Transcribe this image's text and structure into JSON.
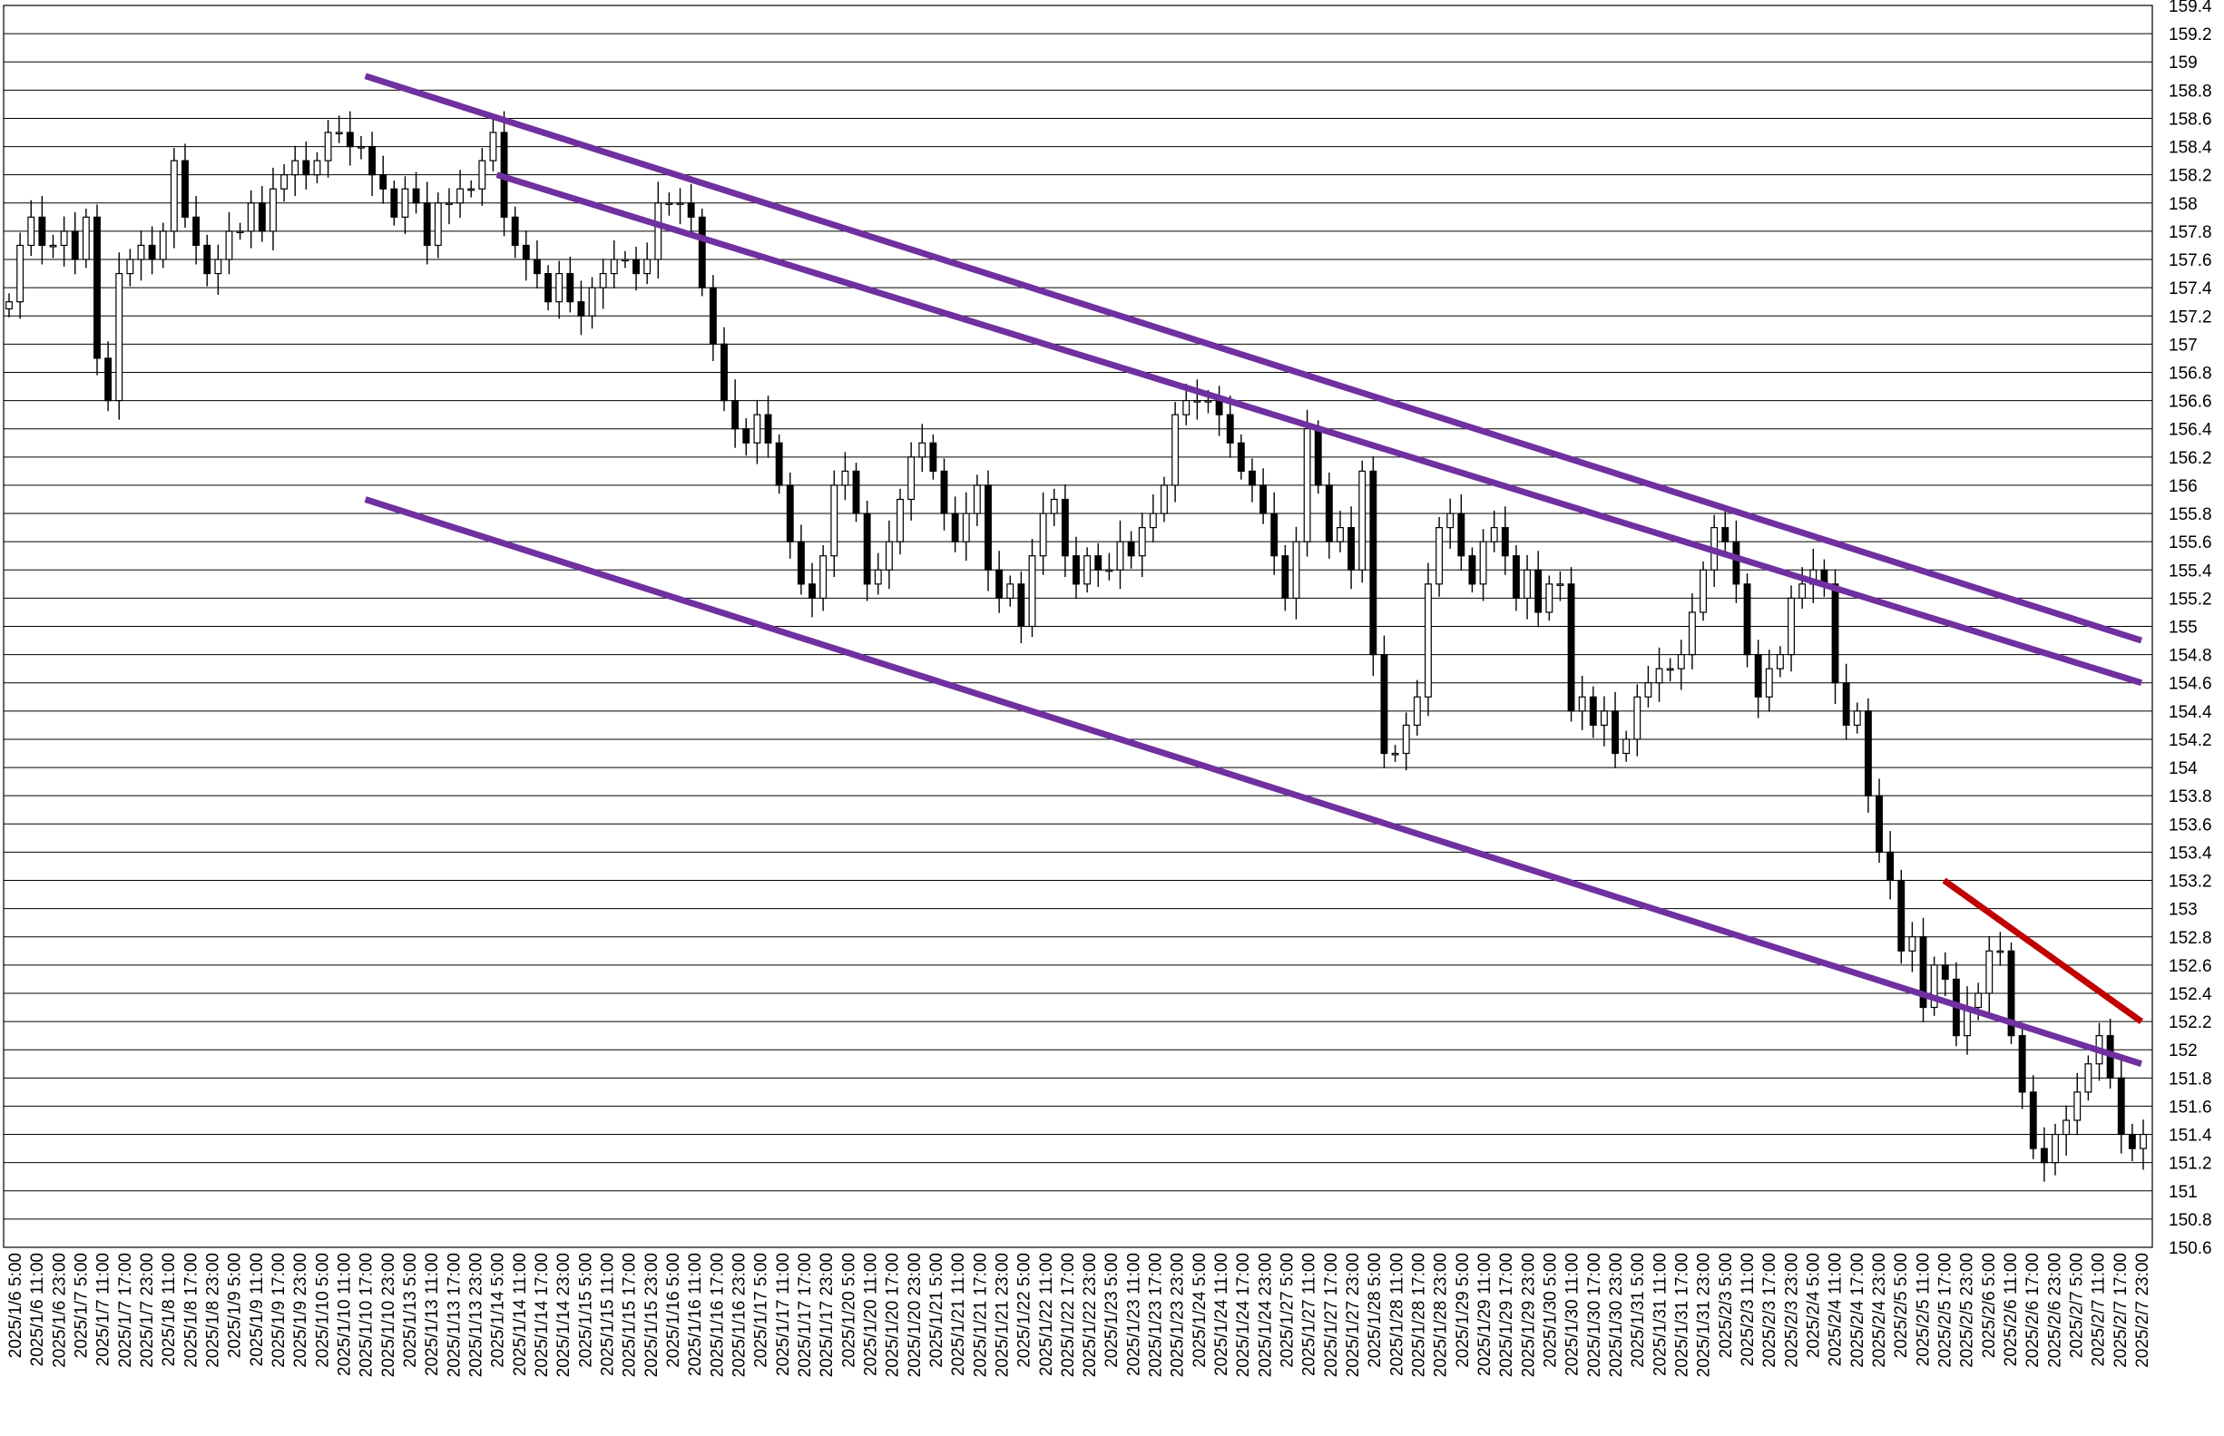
{
  "chart_data": {
    "type": "candlestick",
    "title": "",
    "xlabel": "",
    "ylabel": "",
    "ylim": [
      150.6,
      159.4
    ],
    "y_ticks": [
      159.4,
      159.2,
      159,
      158.8,
      158.6,
      158.4,
      158.2,
      158,
      157.8,
      157.6,
      157.4,
      157.2,
      157,
      156.8,
      156.6,
      156.4,
      156.2,
      156,
      155.8,
      155.6,
      155.4,
      155.2,
      155,
      154.8,
      154.6,
      154.4,
      154.2,
      154,
      153.8,
      153.6,
      153.4,
      153.2,
      153,
      152.8,
      152.6,
      152.4,
      152.2,
      152,
      151.8,
      151.6,
      151.4,
      151.2,
      151,
      150.8,
      150.6
    ],
    "y_tick_labels": [
      "159.4",
      "159.2",
      "159",
      "158.8",
      "158.6",
      "158.4",
      "158.2",
      "158",
      "157.8",
      "157.6",
      "157.4",
      "157.2",
      "157",
      "156.8",
      "156.6",
      "156.4",
      "156.2",
      "156",
      "155.8",
      "155.6",
      "155.4",
      "155.2",
      "155",
      "154.8",
      "154.6",
      "154.4",
      "154.2",
      "154",
      "153.8",
      "153.6",
      "153.4",
      "153.2",
      "153",
      "152.8",
      "152.6",
      "152.4",
      "152.2",
      "152",
      "151.8",
      "151.6",
      "151.4",
      "151.2",
      "151",
      "150.8",
      "150.6"
    ],
    "x_tick_labels": [
      "2025/1/6 5:00",
      "2025/1/6 11:00",
      "2025/1/6 23:00",
      "2025/1/7 5:00",
      "2025/1/7 11:00",
      "2025/1/7 17:00",
      "2025/1/7 23:00",
      "2025/1/8 11:00",
      "2025/1/8 17:00",
      "2025/1/8 23:00",
      "2025/1/9 5:00",
      "2025/1/9 11:00",
      "2025/1/9 17:00",
      "2025/1/9 23:00",
      "2025/1/10 5:00",
      "2025/1/10 11:00",
      "2025/1/10 17:00",
      "2025/1/10 23:00",
      "2025/1/13 5:00",
      "2025/1/13 11:00",
      "2025/1/13 17:00",
      "2025/1/13 23:00",
      "2025/1/14 5:00",
      "2025/1/14 11:00",
      "2025/1/14 17:00",
      "2025/1/14 23:00",
      "2025/1/15 5:00",
      "2025/1/15 11:00",
      "2025/1/15 17:00",
      "2025/1/15 23:00",
      "2025/1/16 5:00",
      "2025/1/16 11:00",
      "2025/1/16 17:00",
      "2025/1/16 23:00",
      "2025/1/17 5:00",
      "2025/1/17 11:00",
      "2025/1/17 17:00",
      "2025/1/17 23:00",
      "2025/1/20 5:00",
      "2025/1/20 11:00",
      "2025/1/20 17:00",
      "2025/1/20 23:00",
      "2025/1/21 5:00",
      "2025/1/21 11:00",
      "2025/1/21 17:00",
      "2025/1/21 23:00",
      "2025/1/22 5:00",
      "2025/1/22 11:00",
      "2025/1/22 17:00",
      "2025/1/22 23:00",
      "2025/1/23 5:00",
      "2025/1/23 11:00",
      "2025/1/23 17:00",
      "2025/1/23 23:00",
      "2025/1/24 5:00",
      "2025/1/24 11:00",
      "2025/1/24 17:00",
      "2025/1/24 23:00",
      "2025/1/27 5:00",
      "2025/1/27 11:00",
      "2025/1/27 17:00",
      "2025/1/27 23:00",
      "2025/1/28 5:00",
      "2025/1/28 11:00",
      "2025/1/28 17:00",
      "2025/1/28 23:00",
      "2025/1/29 5:00",
      "2025/1/29 11:00",
      "2025/1/29 17:00",
      "2025/1/29 23:00",
      "2025/1/30 5:00",
      "2025/1/30 11:00",
      "2025/1/30 17:00",
      "2025/1/30 23:00",
      "2025/1/31 5:00",
      "2025/1/31 11:00",
      "2025/1/31 17:00",
      "2025/1/31 23:00",
      "2025/2/3 5:00",
      "2025/2/3 11:00",
      "2025/2/3 17:00",
      "2025/2/3 23:00",
      "2025/2/4 5:00",
      "2025/2/4 11:00",
      "2025/2/4 17:00",
      "2025/2/4 23:00",
      "2025/2/5 5:00",
      "2025/2/5 11:00",
      "2025/2/5 17:00",
      "2025/2/5 23:00",
      "2025/2/6 5:00",
      "2025/2/6 11:00",
      "2025/2/6 17:00",
      "2025/2/6 23:00",
      "2025/2/7 5:00",
      "2025/2/7 11:00",
      "2025/2/7 17:00",
      "2025/2/7 23:00"
    ],
    "grid": true,
    "grid_axis": "y",
    "up_color": "#ffffff",
    "down_color": "#000000",
    "series": [
      {
        "values": [
          157.3,
          157.7,
          157.9,
          157.7,
          157.7,
          157.8,
          157.6,
          157.9,
          156.9,
          156.6,
          157.5,
          157.6,
          157.7,
          157.6,
          157.8,
          158.3,
          157.9,
          157.7,
          157.5,
          157.6,
          157.8,
          157.8,
          158.0,
          157.8,
          158.1,
          158.2,
          158.3,
          158.2,
          158.3,
          158.5,
          158.5,
          158.4,
          158.4,
          158.2,
          158.1,
          157.9,
          158.1,
          158.0,
          157.7,
          158.0,
          158.0,
          158.1,
          158.1,
          158.3,
          158.5,
          157.9,
          157.7,
          157.6,
          157.5,
          157.3,
          157.5,
          157.3,
          157.2,
          157.4,
          157.5,
          157.6,
          157.6,
          157.5,
          157.6,
          158.0,
          158.0,
          158.0,
          157.9,
          157.4,
          157.0,
          156.6,
          156.4,
          156.3,
          156.5,
          156.3,
          156.0,
          155.6,
          155.3,
          155.2,
          155.5,
          156.0,
          156.1,
          155.8,
          155.3,
          155.4,
          155.6,
          155.9,
          156.2,
          156.3,
          156.1,
          155.8,
          155.6,
          155.8,
          156.0,
          155.4,
          155.2,
          155.3,
          155.0,
          155.5,
          155.8,
          155.9,
          155.5,
          155.3,
          155.5,
          155.4,
          155.4,
          155.6,
          155.5,
          155.7,
          155.8,
          156.0,
          156.5,
          156.6,
          156.6,
          156.6,
          156.5,
          156.3,
          156.1,
          156.0,
          155.8,
          155.5,
          155.2,
          155.6,
          156.4,
          156.0,
          155.6,
          155.7,
          155.4,
          156.1,
          154.8,
          154.1,
          154.1,
          154.3,
          154.5,
          155.3,
          155.7,
          155.8,
          155.5,
          155.3,
          155.6,
          155.7,
          155.5,
          155.2,
          155.4,
          155.1,
          155.3,
          155.3,
          154.4,
          154.5,
          154.3,
          154.4,
          154.1,
          154.2,
          154.5,
          154.6,
          154.7,
          154.7,
          154.8,
          155.1,
          155.4,
          155.7,
          155.6,
          155.3,
          154.8,
          154.5,
          154.7,
          154.8,
          155.2,
          155.3,
          155.4,
          155.3,
          154.6,
          154.3,
          154.4,
          153.8,
          153.4,
          153.2,
          152.7,
          152.8,
          152.3,
          152.6,
          152.5,
          152.1,
          152.3,
          152.4,
          152.7,
          152.7,
          152.1,
          151.7,
          151.3,
          151.2,
          151.4,
          151.5,
          151.7,
          151.9,
          152.1,
          151.8,
          151.4,
          151.3,
          151.4
        ]
      }
    ],
    "annotations": [
      {
        "name": "upper-channel-line",
        "type": "trendline",
        "color": "#7030a0",
        "x": [
          "2025/1/10 17:00",
          "2025/2/7 23:00"
        ],
        "y": [
          158.9,
          154.9
        ]
      },
      {
        "name": "middle-channel-line",
        "type": "trendline",
        "color": "#7030a0",
        "x": [
          "2025/1/14 5:00",
          "2025/2/7 23:00"
        ],
        "y": [
          158.2,
          154.6
        ]
      },
      {
        "name": "lower-channel-line",
        "type": "trendline",
        "color": "#7030a0",
        "x": [
          "2025/1/10 17:00",
          "2025/2/7 23:00"
        ],
        "y": [
          155.9,
          151.9
        ]
      },
      {
        "name": "short-term-resistance-line",
        "type": "trendline",
        "color": "#c00000",
        "x": [
          "2025/2/5 17:00",
          "2025/2/7 23:00"
        ],
        "y": [
          153.2,
          152.2
        ]
      }
    ]
  }
}
